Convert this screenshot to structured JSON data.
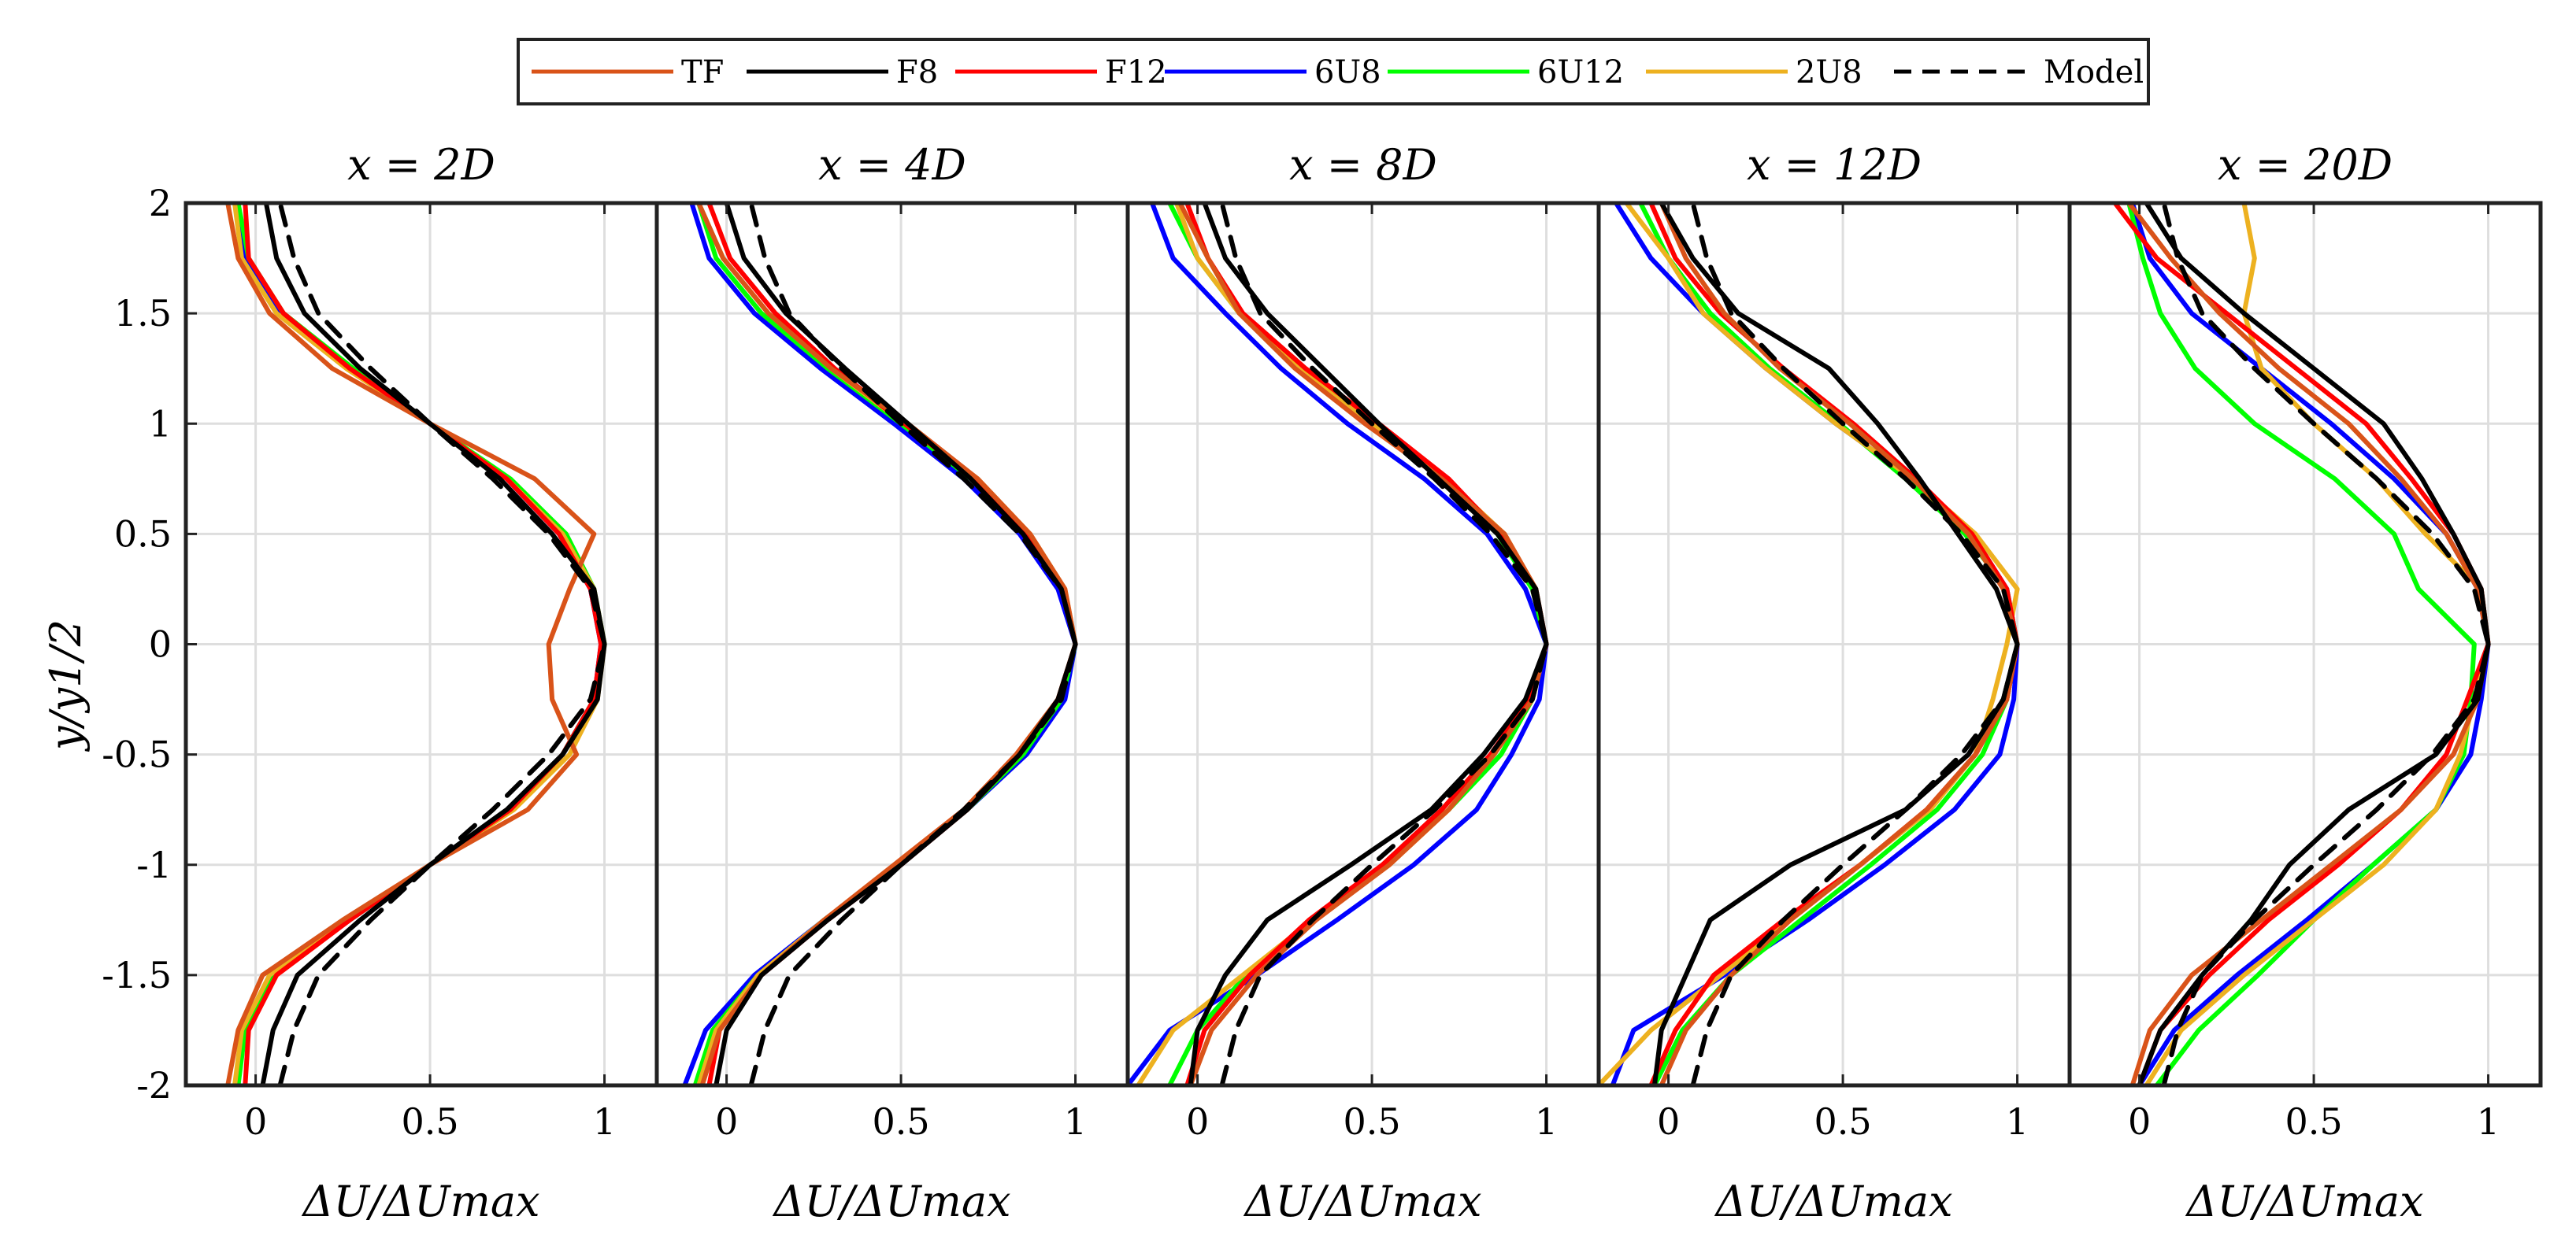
{
  "chart_data": {
    "type": "line",
    "ylabel": "y/y1/2",
    "xlabel": "ΔU/ΔUmax",
    "xlim": [
      -0.2,
      1.15
    ],
    "ylim": [
      -2,
      2
    ],
    "xticks": [
      "0",
      "0.5",
      "1"
    ],
    "xtick_values": [
      0,
      0.5,
      1
    ],
    "yticks": [
      "2",
      "1.5",
      "1",
      "0.5",
      "0",
      "-0.5",
      "-1",
      "-1.5",
      "-2"
    ],
    "ytick_values": [
      2,
      1.5,
      1,
      0.5,
      0,
      -0.5,
      -1,
      -1.5,
      -2
    ],
    "grid": true,
    "legend": {
      "position": "top-center",
      "entries": [
        {
          "name": "TF",
          "color": "#d95319",
          "dash": "solid"
        },
        {
          "name": "F8",
          "color": "#000000",
          "dash": "solid"
        },
        {
          "name": "F12",
          "color": "#ff0000",
          "dash": "solid"
        },
        {
          "name": "6U8",
          "color": "#0000ff",
          "dash": "solid"
        },
        {
          "name": "6U12",
          "color": "#00ff00",
          "dash": "solid"
        },
        {
          "name": "2U8",
          "color": "#edb120",
          "dash": "solid"
        },
        {
          "name": "Model",
          "color": "#000000",
          "dash": "dashed"
        }
      ]
    },
    "y_samples": [
      -2,
      -1.75,
      -1.5,
      -1.25,
      -1,
      -0.75,
      -0.5,
      -0.25,
      0,
      0.25,
      0.5,
      0.75,
      1,
      1.25,
      1.5,
      1.75,
      2
    ],
    "panels": [
      {
        "title": "x = 2D",
        "series": [
          {
            "name": "TF",
            "x": [
              -0.08,
              -0.05,
              0.02,
              0.25,
              0.5,
              0.78,
              0.92,
              0.85,
              0.84,
              0.9,
              0.97,
              0.8,
              0.5,
              0.22,
              0.04,
              -0.05,
              -0.08
            ]
          },
          {
            "name": "F8",
            "x": [
              0.02,
              0.05,
              0.12,
              0.3,
              0.5,
              0.72,
              0.88,
              0.98,
              1.0,
              0.97,
              0.85,
              0.7,
              0.5,
              0.3,
              0.14,
              0.06,
              0.03
            ]
          },
          {
            "name": "F12",
            "x": [
              -0.03,
              -0.02,
              0.06,
              0.27,
              0.5,
              0.73,
              0.88,
              0.97,
              0.99,
              0.96,
              0.87,
              0.72,
              0.5,
              0.27,
              0.08,
              -0.02,
              -0.03
            ]
          },
          {
            "name": "6U8",
            "x": [
              -0.05,
              -0.04,
              0.05,
              0.27,
              0.5,
              0.73,
              0.88,
              0.97,
              0.99,
              0.96,
              0.87,
              0.72,
              0.5,
              0.27,
              0.07,
              -0.03,
              -0.06
            ]
          },
          {
            "name": "6U12",
            "x": [
              -0.05,
              -0.03,
              0.05,
              0.27,
              0.5,
              0.73,
              0.88,
              0.97,
              1.0,
              0.97,
              0.89,
              0.73,
              0.5,
              0.28,
              0.08,
              -0.02,
              -0.05
            ]
          },
          {
            "name": "2U8",
            "x": [
              -0.06,
              -0.04,
              0.04,
              0.26,
              0.5,
              0.74,
              0.9,
              0.98,
              1.0,
              0.97,
              0.88,
              0.72,
              0.5,
              0.26,
              0.06,
              -0.04,
              -0.06
            ]
          },
          {
            "name": "Model",
            "x": [
              0.07,
              0.11,
              0.18,
              0.33,
              0.5,
              0.68,
              0.84,
              0.96,
              1.0,
              0.96,
              0.84,
              0.68,
              0.5,
              0.33,
              0.18,
              0.11,
              0.07
            ]
          }
        ]
      },
      {
        "title": "x = 4D",
        "series": [
          {
            "name": "TF",
            "x": [
              -0.07,
              -0.02,
              0.1,
              0.28,
              0.48,
              0.68,
              0.83,
              0.95,
              1.0,
              0.97,
              0.87,
              0.72,
              0.52,
              0.3,
              0.12,
              -0.01,
              -0.08
            ]
          },
          {
            "name": "F8",
            "x": [
              -0.03,
              0.0,
              0.1,
              0.29,
              0.5,
              0.69,
              0.84,
              0.95,
              1.0,
              0.96,
              0.85,
              0.7,
              0.52,
              0.34,
              0.17,
              0.05,
              0.0
            ]
          },
          {
            "name": "F12",
            "x": [
              -0.05,
              -0.02,
              0.1,
              0.29,
              0.5,
              0.69,
              0.84,
              0.95,
              1.0,
              0.96,
              0.86,
              0.71,
              0.51,
              0.31,
              0.14,
              0.01,
              -0.05
            ]
          },
          {
            "name": "6U8",
            "x": [
              -0.12,
              -0.06,
              0.08,
              0.28,
              0.49,
              0.69,
              0.86,
              0.97,
              1.0,
              0.95,
              0.84,
              0.68,
              0.48,
              0.27,
              0.08,
              -0.05,
              -0.1
            ]
          },
          {
            "name": "6U12",
            "x": [
              -0.09,
              -0.04,
              0.09,
              0.28,
              0.49,
              0.69,
              0.85,
              0.96,
              1.0,
              0.96,
              0.86,
              0.7,
              0.5,
              0.29,
              0.1,
              -0.03,
              -0.08
            ]
          },
          {
            "name": "2U8",
            "x": [
              -0.08,
              -0.03,
              0.09,
              0.28,
              0.49,
              0.69,
              0.84,
              0.95,
              1.0,
              0.97,
              0.87,
              0.72,
              0.51,
              0.3,
              0.12,
              -0.01,
              -0.08
            ]
          },
          {
            "name": "Model",
            "x": [
              0.07,
              0.11,
              0.18,
              0.33,
              0.5,
              0.68,
              0.84,
              0.96,
              1.0,
              0.96,
              0.84,
              0.68,
              0.5,
              0.33,
              0.18,
              0.11,
              0.07
            ]
          }
        ]
      },
      {
        "title": "x = 8D",
        "series": [
          {
            "name": "TF",
            "x": [
              -0.02,
              0.04,
              0.17,
              0.34,
              0.55,
              0.72,
              0.85,
              0.96,
              1.0,
              0.97,
              0.88,
              0.7,
              0.48,
              0.28,
              0.12,
              0.03,
              -0.05
            ]
          },
          {
            "name": "F8",
            "x": [
              -0.02,
              0.0,
              0.08,
              0.2,
              0.44,
              0.67,
              0.82,
              0.94,
              1.0,
              0.97,
              0.86,
              0.69,
              0.52,
              0.36,
              0.2,
              0.08,
              0.02
            ]
          },
          {
            "name": "F12",
            "x": [
              -0.03,
              0.02,
              0.15,
              0.32,
              0.53,
              0.7,
              0.84,
              0.95,
              1.0,
              0.97,
              0.87,
              0.72,
              0.52,
              0.31,
              0.13,
              0.03,
              -0.03
            ]
          },
          {
            "name": "6U8",
            "x": [
              -0.2,
              -0.08,
              0.17,
              0.4,
              0.62,
              0.8,
              0.9,
              0.98,
              1.0,
              0.94,
              0.83,
              0.65,
              0.43,
              0.24,
              0.08,
              -0.07,
              -0.13
            ]
          },
          {
            "name": "6U12",
            "x": [
              -0.08,
              0.0,
              0.14,
              0.33,
              0.54,
              0.72,
              0.87,
              0.96,
              1.0,
              0.96,
              0.86,
              0.7,
              0.5,
              0.3,
              0.12,
              0.0,
              -0.08
            ]
          },
          {
            "name": "2U8",
            "x": [
              -0.17,
              -0.07,
              0.13,
              0.33,
              0.55,
              0.72,
              0.85,
              0.95,
              1.0,
              0.97,
              0.88,
              0.71,
              0.5,
              0.3,
              0.12,
              0.0,
              -0.06
            ]
          },
          {
            "name": "Model",
            "x": [
              0.07,
              0.11,
              0.18,
              0.33,
              0.5,
              0.68,
              0.84,
              0.96,
              1.0,
              0.96,
              0.84,
              0.68,
              0.5,
              0.33,
              0.18,
              0.11,
              0.07
            ]
          }
        ]
      },
      {
        "title": "x = 12D",
        "series": [
          {
            "name": "TF",
            "x": [
              -0.02,
              0.05,
              0.18,
              0.35,
              0.55,
              0.74,
              0.88,
              0.97,
              1.0,
              0.96,
              0.86,
              0.7,
              0.52,
              0.32,
              0.16,
              0.05,
              -0.02
            ]
          },
          {
            "name": "F8",
            "x": [
              -0.04,
              -0.02,
              0.05,
              0.12,
              0.35,
              0.68,
              0.86,
              0.96,
              1.0,
              0.94,
              0.83,
              0.72,
              0.6,
              0.46,
              0.2,
              0.07,
              -0.02
            ]
          },
          {
            "name": "F12",
            "x": [
              -0.05,
              0.02,
              0.13,
              0.33,
              0.55,
              0.74,
              0.88,
              0.97,
              1.0,
              0.97,
              0.87,
              0.71,
              0.53,
              0.33,
              0.15,
              0.02,
              -0.05
            ]
          },
          {
            "name": "6U8",
            "x": [
              -0.16,
              -0.1,
              0.16,
              0.4,
              0.62,
              0.82,
              0.95,
              0.99,
              1.0,
              0.97,
              0.87,
              0.7,
              0.48,
              0.28,
              0.1,
              -0.05,
              -0.15
            ]
          },
          {
            "name": "6U12",
            "x": [
              -0.04,
              0.04,
              0.18,
              0.38,
              0.58,
              0.77,
              0.9,
              0.97,
              1.0,
              0.97,
              0.85,
              0.68,
              0.49,
              0.29,
              0.12,
              0.0,
              -0.08
            ]
          },
          {
            "name": "2U8",
            "x": [
              -0.2,
              -0.05,
              0.15,
              0.35,
              0.55,
              0.75,
              0.88,
              0.93,
              0.97,
              1.0,
              0.88,
              0.7,
              0.48,
              0.28,
              0.1,
              0.0,
              -0.12
            ]
          },
          {
            "name": "Model",
            "x": [
              0.07,
              0.11,
              0.18,
              0.33,
              0.5,
              0.68,
              0.84,
              0.96,
              1.0,
              0.96,
              0.84,
              0.68,
              0.5,
              0.33,
              0.18,
              0.11,
              0.07
            ]
          }
        ]
      },
      {
        "title": "x = 20D",
        "series": [
          {
            "name": "TF",
            "x": [
              -0.02,
              0.03,
              0.15,
              0.35,
              0.55,
              0.75,
              0.9,
              0.97,
              1.0,
              0.97,
              0.88,
              0.75,
              0.6,
              0.4,
              0.23,
              0.09,
              -0.03
            ]
          },
          {
            "name": "F8",
            "x": [
              0.0,
              0.06,
              0.18,
              0.32,
              0.43,
              0.6,
              0.85,
              0.97,
              1.0,
              0.98,
              0.9,
              0.81,
              0.7,
              0.5,
              0.3,
              0.12,
              0.02
            ]
          },
          {
            "name": "F12",
            "x": [
              0.0,
              0.06,
              0.2,
              0.37,
              0.57,
              0.75,
              0.88,
              0.94,
              1.0,
              0.98,
              0.9,
              0.78,
              0.65,
              0.45,
              0.25,
              0.05,
              -0.07
            ]
          },
          {
            "name": "6U8",
            "x": [
              0.0,
              0.1,
              0.28,
              0.48,
              0.67,
              0.85,
              0.95,
              0.98,
              1.0,
              0.97,
              0.88,
              0.73,
              0.55,
              0.35,
              0.15,
              0.03,
              -0.02
            ]
          },
          {
            "name": "6U12",
            "x": [
              0.05,
              0.17,
              0.34,
              0.5,
              0.67,
              0.85,
              0.93,
              0.95,
              0.96,
              0.8,
              0.73,
              0.56,
              0.33,
              0.16,
              0.06,
              0.01,
              -0.03
            ]
          },
          {
            "name": "2U8",
            "x": [
              0.02,
              0.12,
              0.3,
              0.5,
              0.7,
              0.85,
              0.92,
              0.96,
              1.0,
              0.98,
              0.82,
              0.68,
              0.5,
              0.35,
              0.3,
              0.33,
              0.3
            ]
          },
          {
            "name": "Model",
            "x": [
              0.07,
              0.11,
              0.18,
              0.33,
              0.5,
              0.68,
              0.84,
              0.96,
              1.0,
              0.96,
              0.84,
              0.68,
              0.5,
              0.33,
              0.18,
              0.11,
              0.07
            ]
          }
        ]
      }
    ]
  }
}
